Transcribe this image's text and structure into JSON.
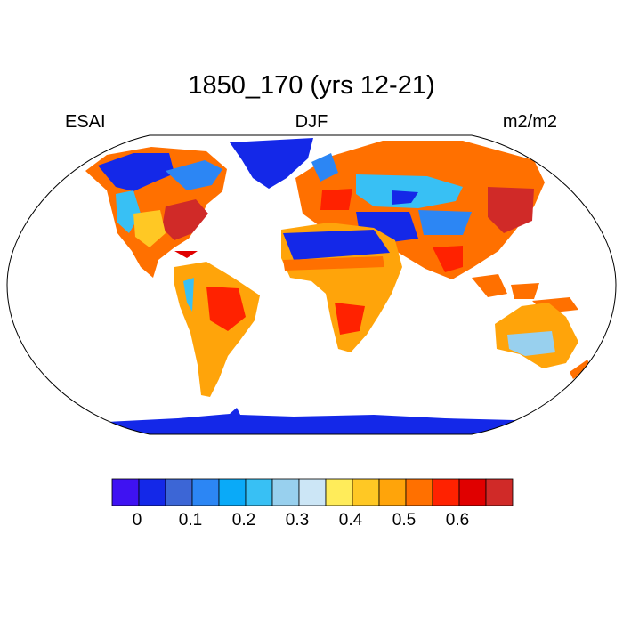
{
  "title": "1850_170 (yrs 12-21)",
  "left_label": "ESAI",
  "center_label": "DJF",
  "right_label": "m2/m2",
  "colorbar": {
    "colors": [
      "#3f12f2",
      "#1428e8",
      "#3c66d6",
      "#2c86f4",
      "#0aaaf8",
      "#38c0f4",
      "#98d0ee",
      "#cce6f6",
      "#ffec5a",
      "#ffc824",
      "#ffa40a",
      "#ff7000",
      "#ff2200",
      "#e00000",
      "#d02a28"
    ],
    "tick_labels": [
      "0",
      "0.1",
      "0.2",
      "0.3",
      "0.4",
      "0.5",
      "0.6"
    ]
  },
  "map": {
    "projection": "Robinson",
    "ocean_color": "#ffffff",
    "coastline_color": "#000000"
  }
}
